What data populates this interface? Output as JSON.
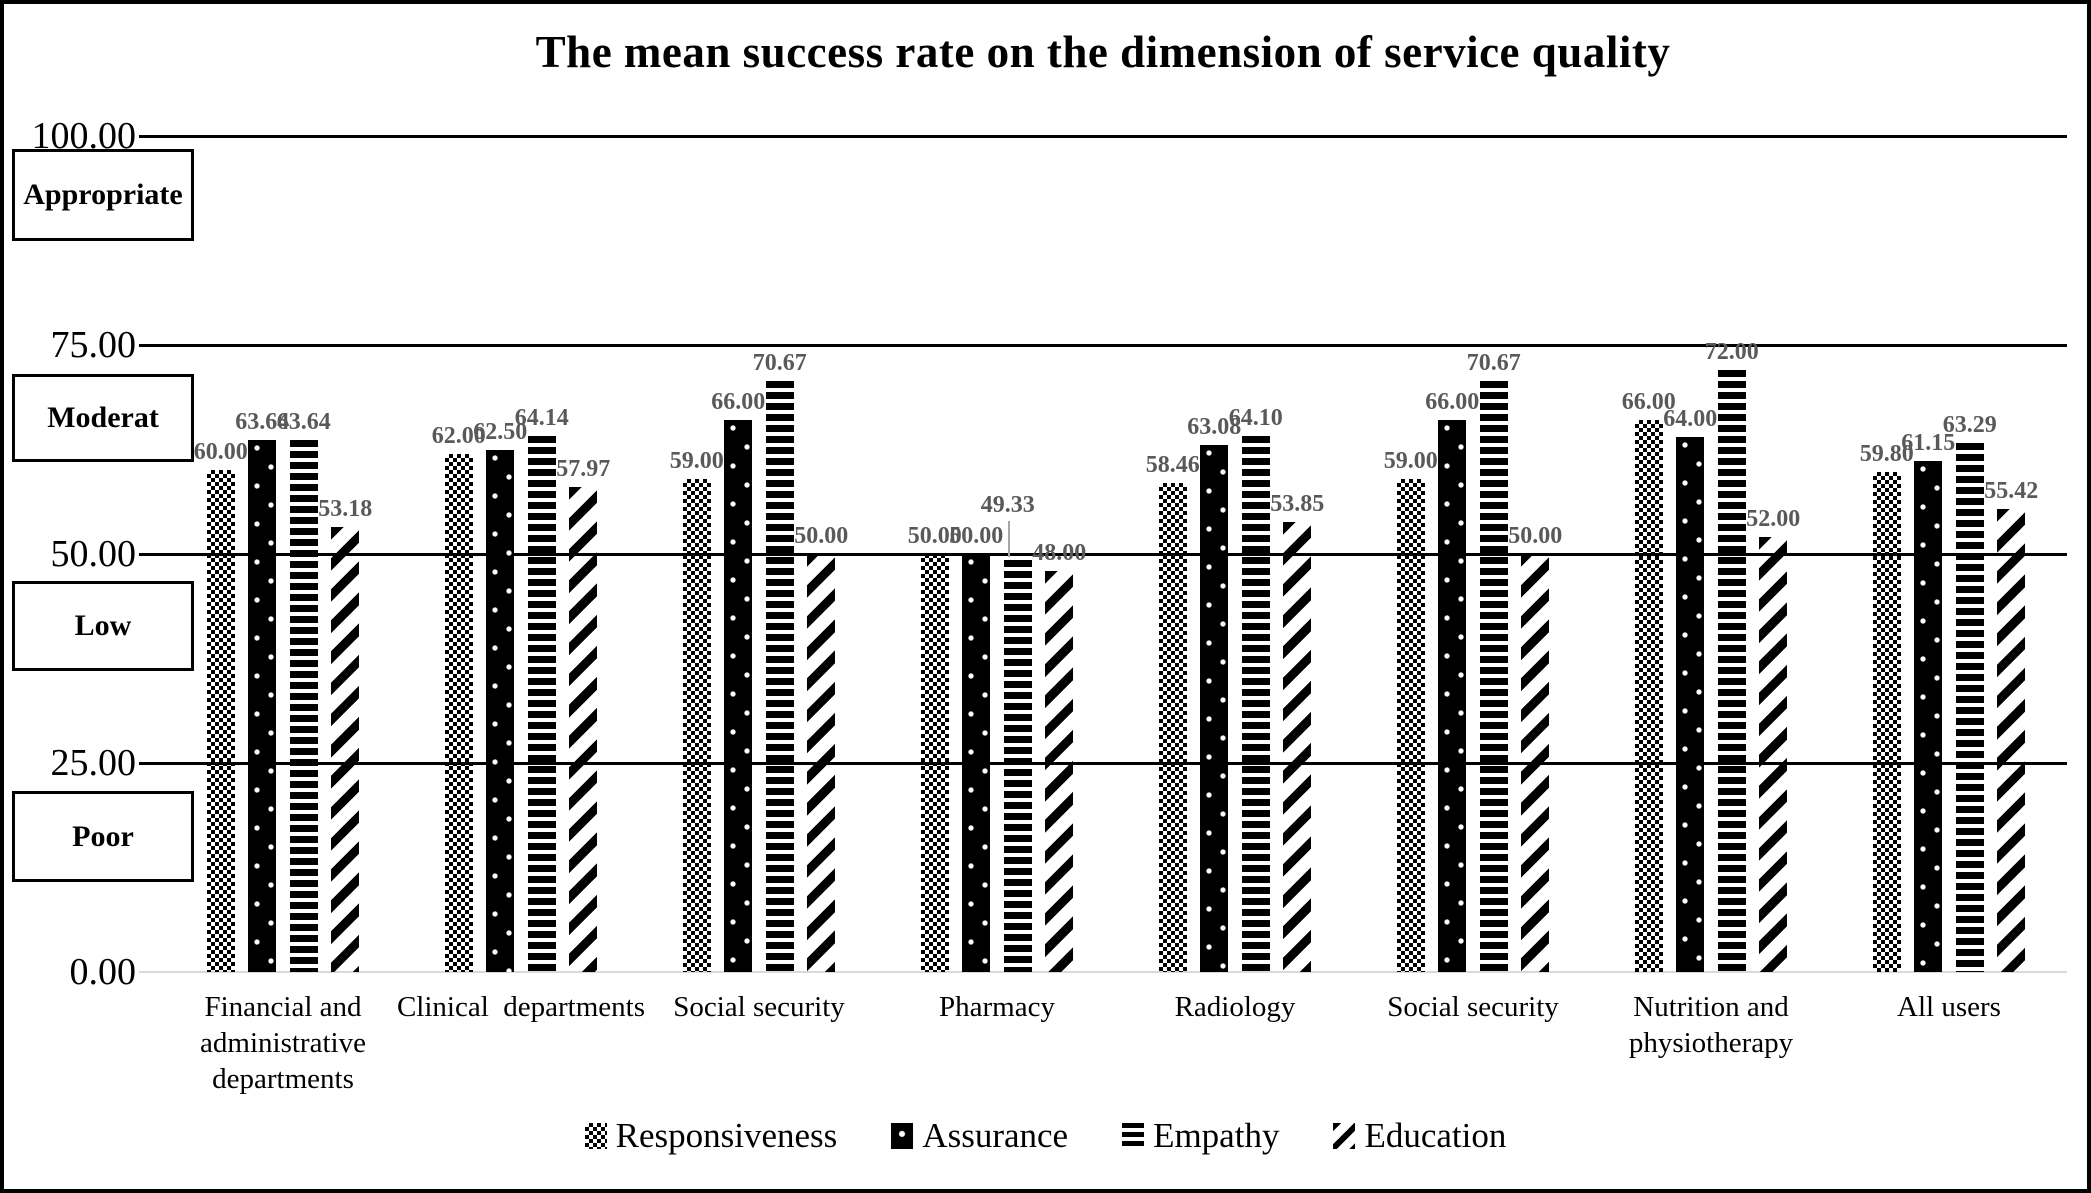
{
  "chart_data": {
    "type": "bar",
    "title": "The mean success rate on the dimension of service quality",
    "categories": [
      "Financial and\nadministrative\ndepartments",
      "Clinical  departments",
      "Social security",
      "Pharmacy",
      "Radiology",
      "Social security",
      "Nutrition and\nphysiotherapy",
      "All users"
    ],
    "series": [
      {
        "name": "Responsiveness",
        "pattern": "checkerboard",
        "values": [
          60.0,
          62.0,
          59.0,
          50.0,
          58.46,
          59.0,
          66.0,
          59.8
        ]
      },
      {
        "name": "Assurance",
        "pattern": "black-white-dots",
        "values": [
          63.64,
          62.5,
          66.0,
          50.0,
          63.08,
          66.0,
          64.0,
          61.15
        ]
      },
      {
        "name": "Empathy",
        "pattern": "horizontal-stripes",
        "values": [
          63.64,
          64.14,
          70.67,
          49.33,
          64.1,
          70.67,
          72.0,
          63.29
        ]
      },
      {
        "name": "Education",
        "pattern": "diagonal-stripes",
        "values": [
          53.18,
          57.97,
          50.0,
          48.0,
          53.85,
          50.0,
          52.0,
          55.42
        ]
      }
    ],
    "ylim": [
      0,
      100
    ],
    "yticks": [
      {
        "value": 100,
        "label": "100.00"
      },
      {
        "value": 75,
        "label": "75.00"
      },
      {
        "value": 50,
        "label": "50.00"
      },
      {
        "value": 25,
        "label": "25.00"
      },
      {
        "value": 0,
        "label": "0.00"
      }
    ],
    "zone_labels": [
      "Appropriate",
      "Moderat",
      "Low",
      "Poor"
    ],
    "data_label_decimals": 2,
    "data_label_color": "#595959",
    "gridline_color": "#000000",
    "baseline_color": "#d9d9d9",
    "leader_line_color": "#a6a6a6",
    "legend_position": "bottom",
    "grid": "horizontal-only",
    "callout": {
      "category_index": 3,
      "series_index": 2
    }
  }
}
